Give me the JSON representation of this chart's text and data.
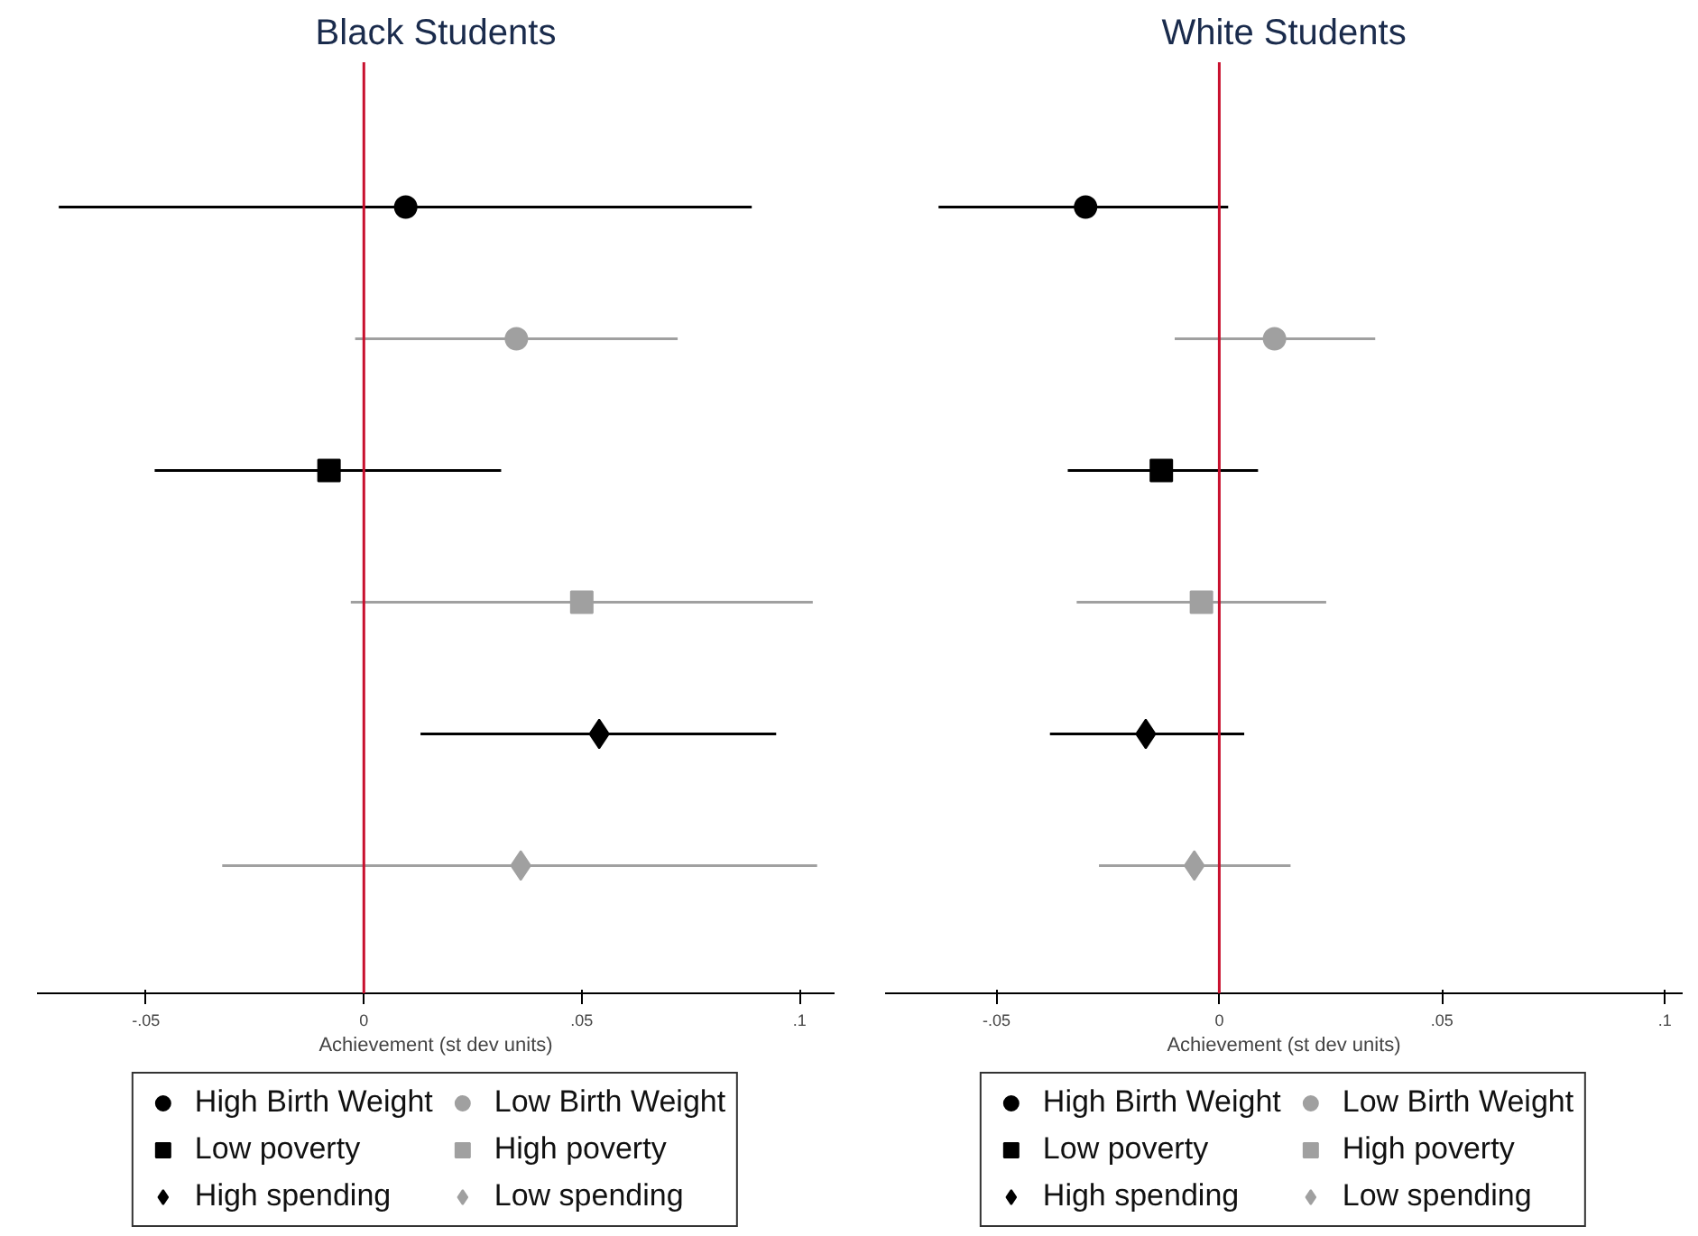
{
  "chart_data": [
    {
      "type": "scatter",
      "title": "Black Students",
      "xlabel": "Achievement (st dev units)",
      "orientation": "horizontal",
      "categories": [
        null,
        null,
        null,
        null,
        null,
        null
      ],
      "xlim": [
        -0.075,
        0.108
      ],
      "xticks": [
        {
          "value": -0.05,
          "label": "-.05"
        },
        0,
        {
          "value": 0.05,
          "label": ".05"
        },
        {
          "value": 0.1,
          "label": ".1"
        }
      ],
      "tick_labels": "x",
      "grid": false,
      "legend": "bottom",
      "ref_lines": [
        {
          "axis": "x",
          "value": 0,
          "label": null,
          "color": "#c8102e"
        }
      ],
      "series": [
        {
          "name": "High Birth Weight",
          "color": "#000000",
          "marker": "circle",
          "values": [
            0.0096,
            null,
            null,
            null,
            null,
            null
          ],
          "errors": [
            [
              -0.07,
              0.089
            ],
            null,
            null,
            null,
            null,
            null
          ]
        },
        {
          "name": "Low Birth Weight",
          "color": "#a0a0a0",
          "marker": "circle",
          "values": [
            null,
            0.035,
            null,
            null,
            null,
            null
          ],
          "errors": [
            null,
            [
              -0.002,
              0.072
            ],
            null,
            null,
            null,
            null
          ]
        },
        {
          "name": "Low poverty",
          "color": "#000000",
          "marker": "square",
          "values": [
            null,
            null,
            -0.008,
            null,
            null,
            null
          ],
          "errors": [
            null,
            null,
            [
              -0.048,
              0.0315
            ],
            null,
            null,
            null
          ]
        },
        {
          "name": "High poverty",
          "color": "#a0a0a0",
          "marker": "square",
          "values": [
            null,
            null,
            null,
            0.05,
            null,
            null
          ],
          "errors": [
            null,
            null,
            null,
            [
              -0.003,
              0.103
            ],
            null,
            null
          ]
        },
        {
          "name": "High spending",
          "color": "#000000",
          "marker": "diamond",
          "values": [
            null,
            null,
            null,
            null,
            0.054,
            null
          ],
          "errors": [
            null,
            null,
            null,
            null,
            [
              0.013,
              0.0946
            ],
            null
          ]
        },
        {
          "name": "Low spending",
          "color": "#a0a0a0",
          "marker": "diamond",
          "values": [
            null,
            null,
            null,
            null,
            null,
            0.036
          ],
          "errors": [
            null,
            null,
            null,
            null,
            null,
            [
              -0.0325,
              0.104
            ]
          ]
        }
      ]
    },
    {
      "type": "scatter",
      "title": "White Students",
      "xlabel": "Achievement (st dev units)",
      "orientation": "horizontal",
      "categories": [
        null,
        null,
        null,
        null,
        null,
        null
      ],
      "xlim": [
        -0.075,
        0.104
      ],
      "xticks": [
        {
          "value": -0.05,
          "label": "-.05"
        },
        0,
        {
          "value": 0.05,
          "label": ".05"
        },
        {
          "value": 0.1,
          "label": ".1"
        }
      ],
      "tick_labels": "x",
      "grid": false,
      "legend": "bottom",
      "ref_lines": [
        {
          "axis": "x",
          "value": 0,
          "label": null,
          "color": "#c8102e"
        }
      ],
      "series": [
        {
          "name": "High Birth Weight",
          "color": "#000000",
          "marker": "circle",
          "values": [
            -0.03,
            null,
            null,
            null,
            null,
            null
          ],
          "errors": [
            [
              -0.063,
              0.002
            ],
            null,
            null,
            null,
            null,
            null
          ]
        },
        {
          "name": "Low Birth Weight",
          "color": "#a0a0a0",
          "marker": "circle",
          "values": [
            null,
            0.0124,
            null,
            null,
            null,
            null
          ],
          "errors": [
            null,
            [
              -0.01,
              0.035
            ],
            null,
            null,
            null,
            null
          ]
        },
        {
          "name": "Low poverty",
          "color": "#000000",
          "marker": "square",
          "values": [
            null,
            null,
            -0.013,
            null,
            null,
            null
          ],
          "errors": [
            null,
            null,
            [
              -0.034,
              0.0087
            ],
            null,
            null,
            null
          ]
        },
        {
          "name": "High poverty",
          "color": "#a0a0a0",
          "marker": "square",
          "values": [
            null,
            null,
            null,
            -0.004,
            null,
            null
          ],
          "errors": [
            null,
            null,
            null,
            [
              -0.032,
              0.024
            ],
            null,
            null
          ]
        },
        {
          "name": "High spending",
          "color": "#000000",
          "marker": "diamond",
          "values": [
            null,
            null,
            null,
            null,
            -0.0165,
            null
          ],
          "errors": [
            null,
            null,
            null,
            null,
            [
              -0.038,
              0.0056
            ],
            null
          ]
        },
        {
          "name": "Low spending",
          "color": "#a0a0a0",
          "marker": "diamond",
          "values": [
            null,
            null,
            null,
            null,
            null,
            -0.0056
          ],
          "errors": [
            null,
            null,
            null,
            null,
            null,
            [
              -0.027,
              0.016
            ]
          ]
        }
      ]
    }
  ]
}
